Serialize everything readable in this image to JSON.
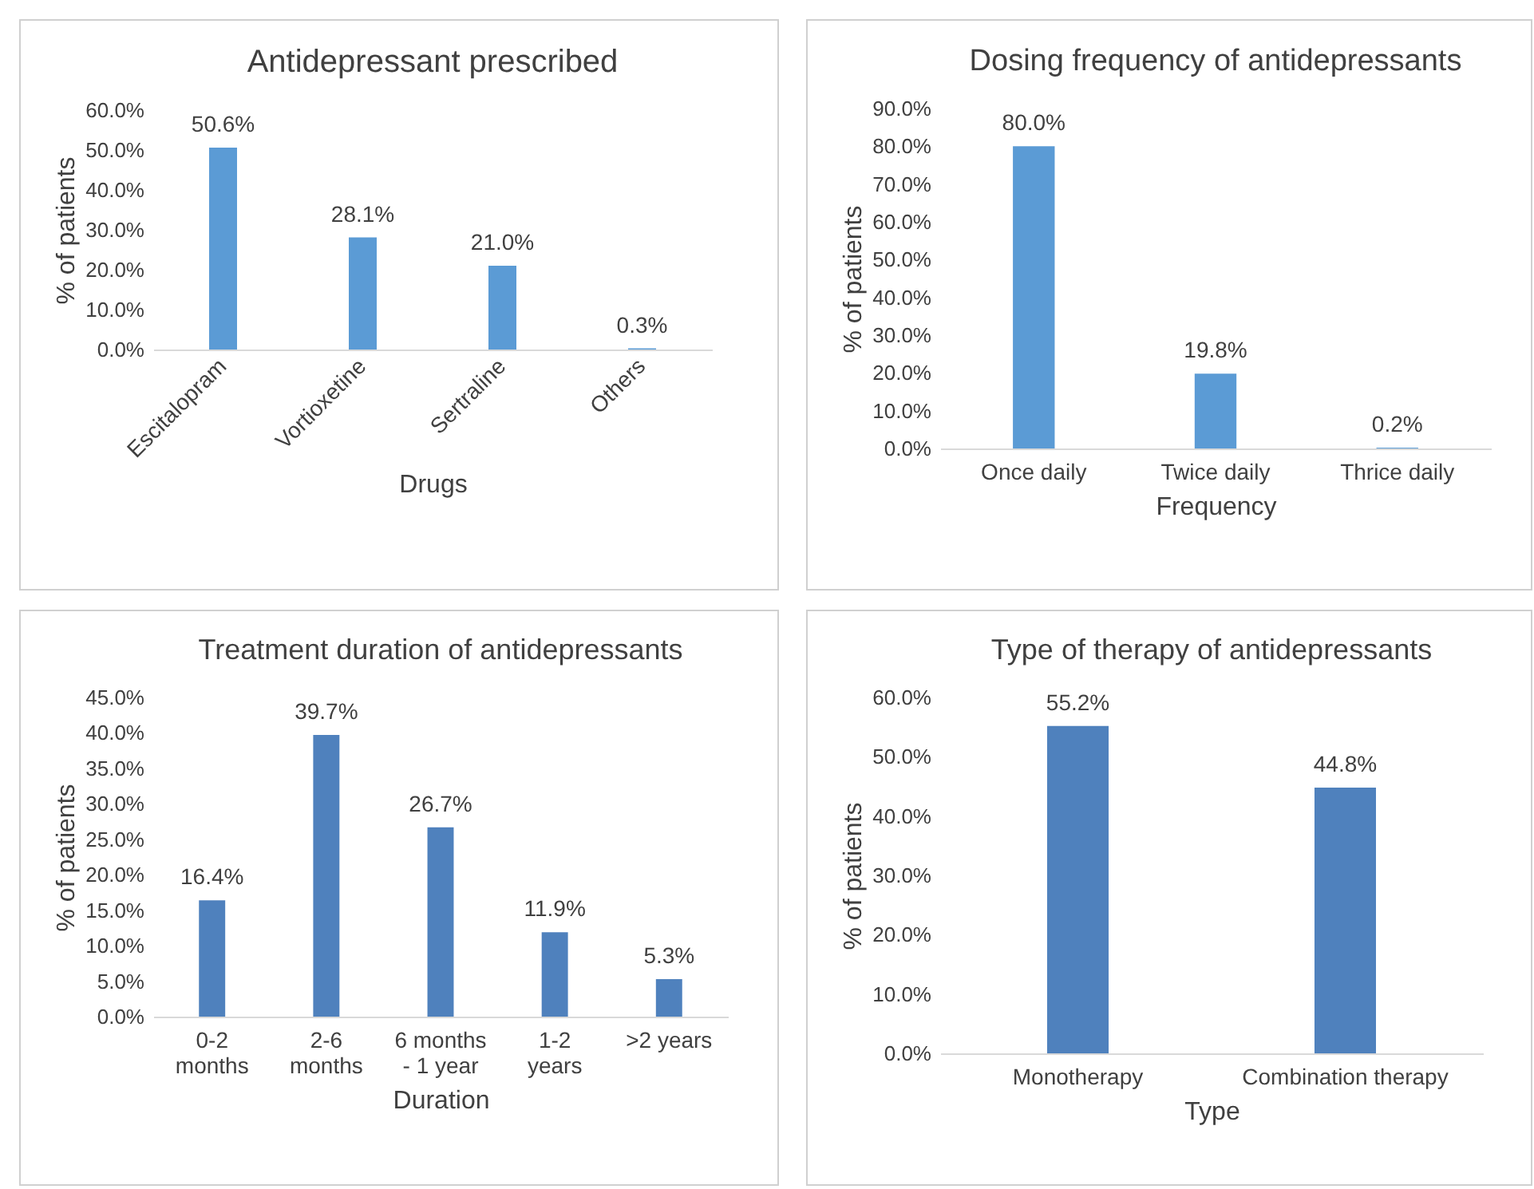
{
  "chart_data": [
    {
      "type": "bar",
      "title": "Antidepressant prescribed",
      "xlabel": "Drugs",
      "ylabel": "% of patients",
      "categories": [
        "Escitalopram",
        "Vortioxetine",
        "Sertraline",
        "Others"
      ],
      "values": [
        50.6,
        28.1,
        21.0,
        0.3
      ],
      "value_labels": [
        "50.6%",
        "28.1%",
        "21.0%",
        "0.3%"
      ],
      "color": "#5b9bd5",
      "ylim": [
        0,
        60
      ],
      "yticks": [
        {
          "value": 0,
          "label": "0.0%"
        },
        {
          "value": 10,
          "label": "10.0%"
        },
        {
          "value": 20,
          "label": "20.0%"
        },
        {
          "value": 30,
          "label": "30.0%"
        },
        {
          "value": 40,
          "label": "40.0%"
        },
        {
          "value": 50,
          "label": "50.0%"
        },
        {
          "value": 60,
          "label": "60.0%"
        }
      ]
    },
    {
      "type": "bar",
      "title": "Dosing frequency of antidepressants",
      "xlabel": "Frequency",
      "ylabel": "% of patients",
      "categories": [
        "Once daily",
        "Twice daily",
        "Thrice daily"
      ],
      "values": [
        80.0,
        19.8,
        0.2
      ],
      "value_labels": [
        "80.0%",
        "19.8%",
        "0.2%"
      ],
      "color": "#5b9bd5",
      "ylim": [
        0,
        90
      ],
      "yticks": [
        {
          "value": 0,
          "label": "0.0%"
        },
        {
          "value": 10,
          "label": "10.0%"
        },
        {
          "value": 20,
          "label": "20.0%"
        },
        {
          "value": 30,
          "label": "30.0%"
        },
        {
          "value": 40,
          "label": "40.0%"
        },
        {
          "value": 50,
          "label": "50.0%"
        },
        {
          "value": 60,
          "label": "60.0%"
        },
        {
          "value": 70,
          "label": "70.0%"
        },
        {
          "value": 80,
          "label": "80.0%"
        },
        {
          "value": 90,
          "label": "90.0%"
        }
      ]
    },
    {
      "type": "bar",
      "title": "Treatment duration of antidepressants",
      "xlabel": "Duration",
      "ylabel": "% of patients",
      "categories": [
        "0-2 months",
        "2-6 months",
        "6 months - 1 year",
        "1-2 years",
        ">2 years"
      ],
      "values": [
        16.4,
        39.7,
        26.7,
        11.9,
        5.3
      ],
      "value_labels": [
        "16.4%",
        "39.7%",
        "26.7%",
        "11.9%",
        "5.3%"
      ],
      "color": "#4f81bd",
      "ylim": [
        0,
        45
      ],
      "yticks": [
        {
          "value": 0,
          "label": "0.0%"
        },
        {
          "value": 5,
          "label": "5.0%"
        },
        {
          "value": 10,
          "label": "10.0%"
        },
        {
          "value": 15,
          "label": "15.0%"
        },
        {
          "value": 20,
          "label": "20.0%"
        },
        {
          "value": 25,
          "label": "25.0%"
        },
        {
          "value": 30,
          "label": "30.0%"
        },
        {
          "value": 35,
          "label": "35.0%"
        },
        {
          "value": 40,
          "label": "40.0%"
        },
        {
          "value": 45,
          "label": "45.0%"
        }
      ]
    },
    {
      "type": "bar",
      "title": "Type of therapy of antidepressants",
      "xlabel": "Type",
      "ylabel": "% of patients",
      "categories": [
        "Monotherapy",
        "Combination therapy"
      ],
      "values": [
        55.2,
        44.8
      ],
      "value_labels": [
        "55.2%",
        "44.8%"
      ],
      "color": "#4f81bd",
      "ylim": [
        0,
        60
      ],
      "yticks": [
        {
          "value": 0,
          "label": "0.0%"
        },
        {
          "value": 10,
          "label": "10.0%"
        },
        {
          "value": 20,
          "label": "20.0%"
        },
        {
          "value": 30,
          "label": "30.0%"
        },
        {
          "value": 40,
          "label": "40.0%"
        },
        {
          "value": 50,
          "label": "50.0%"
        },
        {
          "value": 60,
          "label": "60.0%"
        }
      ]
    }
  ]
}
